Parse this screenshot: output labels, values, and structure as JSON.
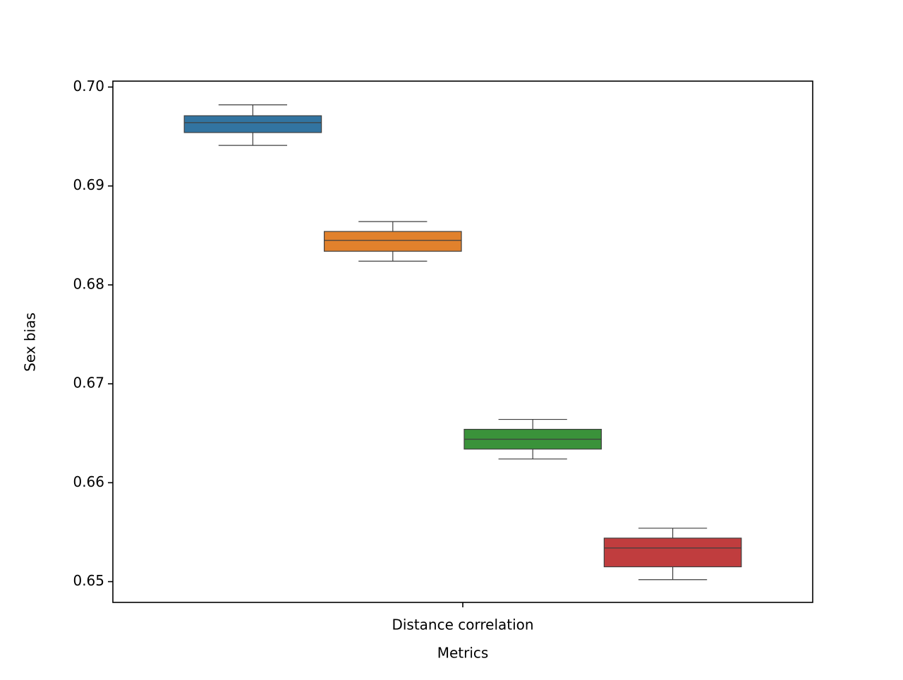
{
  "chart_data": {
    "type": "box",
    "x_label": "Metrics",
    "y_label": "Sex bias",
    "categories": [
      "Distance correlation"
    ],
    "series": [
      {
        "color": "#3274a1",
        "min": 0.6941,
        "q1": 0.6954,
        "median": 0.6964,
        "q3": 0.6971,
        "max": 0.6982
      },
      {
        "color": "#e1812c",
        "min": 0.6824,
        "q1": 0.6834,
        "median": 0.6845,
        "q3": 0.6854,
        "max": 0.6864
      },
      {
        "color": "#3a923a",
        "min": 0.6624,
        "q1": 0.6634,
        "median": 0.6644,
        "q3": 0.6654,
        "max": 0.6664
      },
      {
        "color": "#c03d3e",
        "min": 0.6502,
        "q1": 0.6515,
        "median": 0.6534,
        "q3": 0.6544,
        "max": 0.6554
      }
    ],
    "ylim": [
      0.6479,
      0.7006
    ],
    "yticks": [
      0.65,
      0.66,
      0.67,
      0.68,
      0.69,
      {
        "value": 0.7,
        "label": "0.70"
      }
    ]
  }
}
